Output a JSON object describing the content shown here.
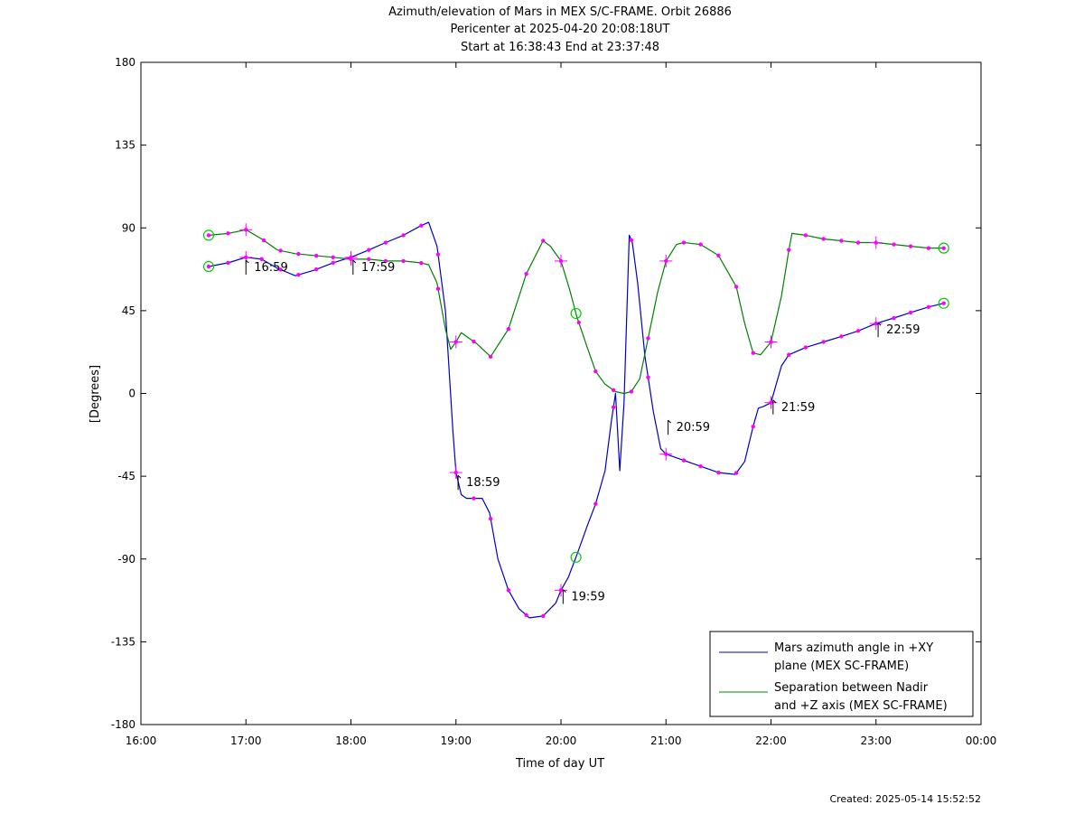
{
  "chart_data": {
    "type": "line",
    "title": "Azimuth/elevation of Mars in MEX S/C-FRAME.  Orbit 26886",
    "subtitle": "Pericenter at 2025-04-20 20:08:18UT",
    "subtitle2": "Start at 16:38:43 End at 23:37:48",
    "xlabel": "Time of day UT",
    "ylabel": "[Degrees]",
    "xlim": [
      16.0,
      24.0
    ],
    "ylim": [
      -180,
      180
    ],
    "x_ticks": [
      {
        "v": 16,
        "label": "16:00"
      },
      {
        "v": 17,
        "label": "17:00"
      },
      {
        "v": 18,
        "label": "18:00"
      },
      {
        "v": 19,
        "label": "19:00"
      },
      {
        "v": 20,
        "label": "20:00"
      },
      {
        "v": 21,
        "label": "21:00"
      },
      {
        "v": 22,
        "label": "22:00"
      },
      {
        "v": 23,
        "label": "23:00"
      },
      {
        "v": 24,
        "label": "00:00"
      }
    ],
    "y_ticks": [
      {
        "v": 180,
        "label": "180"
      },
      {
        "v": 135,
        "label": "135"
      },
      {
        "v": 90,
        "label": "90"
      },
      {
        "v": 45,
        "label": "45"
      },
      {
        "v": 0,
        "label": "0"
      },
      {
        "v": -45,
        "label": "-45"
      },
      {
        "v": -90,
        "label": "-90"
      },
      {
        "v": -135,
        "label": "-135"
      },
      {
        "v": -180,
        "label": "-180"
      }
    ],
    "grid": false,
    "legend_position": "bottom-right",
    "legend": [
      {
        "lines": [
          "Mars azimuth angle in +XY",
          "plane (MEX SC-FRAME)"
        ],
        "color": "#0000cc"
      },
      {
        "lines": [
          "Separation between Nadir",
          "and +Z axis (MEX SC-FRAME)"
        ],
        "color": "#008000"
      }
    ],
    "series": [
      {
        "name": "Mars azimuth angle in +XY plane (MEX SC-FRAME)",
        "color": "#0000cc",
        "x": [
          16.645,
          16.83,
          17.0,
          17.15,
          17.3,
          17.47,
          17.65,
          17.83,
          18.0,
          18.17,
          18.33,
          18.5,
          18.66,
          18.74,
          18.82,
          18.9,
          18.97,
          19.0,
          19.05,
          19.1,
          19.17,
          19.25,
          19.32,
          19.4,
          19.5,
          19.6,
          19.7,
          19.83,
          19.95,
          20.0,
          20.07,
          20.15,
          20.25,
          20.33,
          20.42,
          20.48,
          20.52,
          20.56,
          20.6,
          20.65,
          20.68,
          20.73,
          20.8,
          20.88,
          20.95,
          21.0,
          21.05,
          21.15,
          21.35,
          21.5,
          21.66,
          21.75,
          21.83,
          21.88,
          21.93,
          22.0,
          22.05,
          22.1,
          22.17,
          22.33,
          22.5,
          22.67,
          22.83,
          23.0,
          23.17,
          23.33,
          23.5,
          23.645
        ],
        "y": [
          69,
          71,
          74,
          73,
          68,
          64,
          67,
          71,
          74,
          78,
          82,
          86,
          91,
          93,
          80,
          45,
          -20,
          -43,
          -55,
          -57,
          -57,
          -57,
          -65,
          -90,
          -107,
          -117,
          -122,
          -121,
          -114,
          -107,
          -100,
          -88,
          -72,
          -60,
          -42,
          -15,
          0,
          -42,
          -5,
          86,
          82,
          60,
          20,
          -10,
          -30,
          -33,
          -34,
          -36,
          -40,
          -43,
          -44,
          -37,
          -18,
          -8,
          -7,
          -5,
          5,
          15,
          21,
          25,
          28,
          31,
          34,
          38,
          41,
          44,
          47,
          49
        ]
      },
      {
        "name": "Separation between Nadir and +Z axis (MEX SC-FRAME)",
        "color": "#008000",
        "x": [
          16.645,
          16.83,
          17.0,
          17.15,
          17.3,
          17.47,
          17.65,
          17.83,
          18.0,
          18.17,
          18.33,
          18.5,
          18.66,
          18.74,
          18.82,
          18.9,
          18.95,
          19.0,
          19.05,
          19.1,
          19.2,
          19.33,
          19.5,
          19.67,
          19.83,
          19.9,
          20.0,
          20.08,
          20.15,
          20.25,
          20.33,
          20.42,
          20.52,
          20.6,
          20.67,
          20.75,
          20.83,
          20.92,
          21.0,
          21.1,
          21.17,
          21.33,
          21.5,
          21.67,
          21.75,
          21.83,
          21.9,
          22.0,
          22.1,
          22.17,
          22.2,
          22.33,
          22.5,
          22.67,
          22.83,
          23.0,
          23.17,
          23.33,
          23.5,
          23.645
        ],
        "y": [
          86,
          87,
          89,
          84,
          78,
          76,
          75,
          74,
          73,
          73,
          72,
          72,
          71,
          70,
          60,
          35,
          24,
          28,
          33,
          31,
          27,
          20,
          35,
          65,
          83,
          80,
          72,
          57,
          42,
          25,
          12,
          5,
          1,
          0,
          1,
          8,
          30,
          55,
          72,
          81,
          82,
          81,
          75,
          58,
          38,
          22,
          21,
          28,
          53,
          78,
          87,
          86,
          84,
          83,
          82,
          82,
          81,
          80,
          79,
          79
        ]
      }
    ],
    "markers": {
      "dots_color": "#ff00ff",
      "circle_color": "#00cc00",
      "azimuth_dot_times": [
        16.645,
        16.83,
        17.0,
        17.15,
        17.33,
        17.5,
        17.67,
        17.83,
        18.0,
        18.17,
        18.33,
        18.5,
        18.67,
        18.83,
        19.0,
        19.17,
        19.33,
        19.5,
        19.67,
        19.83,
        20.0,
        20.33,
        20.5,
        20.67,
        20.83,
        21.0,
        21.17,
        21.33,
        21.5,
        21.67,
        21.83,
        22.0,
        22.17,
        22.33,
        22.5,
        22.67,
        22.83,
        23.0,
        23.17,
        23.33,
        23.5,
        23.645
      ],
      "separation_dot_times": [
        16.645,
        16.83,
        17.0,
        17.17,
        17.33,
        17.5,
        17.67,
        17.83,
        18.0,
        18.17,
        18.33,
        18.5,
        18.67,
        18.83,
        19.0,
        19.17,
        19.33,
        19.5,
        19.67,
        19.83,
        20.0,
        20.17,
        20.33,
        20.5,
        20.67,
        20.83,
        21.0,
        21.17,
        21.33,
        21.5,
        21.67,
        21.83,
        22.0,
        22.17,
        22.33,
        22.5,
        22.67,
        22.83,
        23.0,
        23.17,
        23.33,
        23.5,
        23.645
      ],
      "crosses_azimuth": [
        17.0,
        18.0,
        19.0,
        20.0,
        21.0,
        22.0,
        23.0
      ],
      "crosses_separation": [
        17.0,
        18.0,
        19.0,
        20.0,
        21.0,
        22.0,
        23.0
      ],
      "circles_azimuth": [
        16.645,
        20.143,
        23.645
      ],
      "circles_separation": [
        16.645,
        20.143,
        23.645
      ]
    },
    "annotations": [
      {
        "x": 17.0,
        "y": 69,
        "label": "16:59"
      },
      {
        "x": 18.02,
        "y": 69,
        "label": "17:59"
      },
      {
        "x": 19.02,
        "y": -48,
        "label": "18:59"
      },
      {
        "x": 20.02,
        "y": -110,
        "label": "19:59"
      },
      {
        "x": 21.02,
        "y": -18,
        "label": "20:59"
      },
      {
        "x": 22.02,
        "y": -7,
        "label": "21:59"
      },
      {
        "x": 23.02,
        "y": 35,
        "label": "22:59"
      }
    ]
  },
  "footer": {
    "created": "Created: 2025-05-14 15:52:52"
  }
}
